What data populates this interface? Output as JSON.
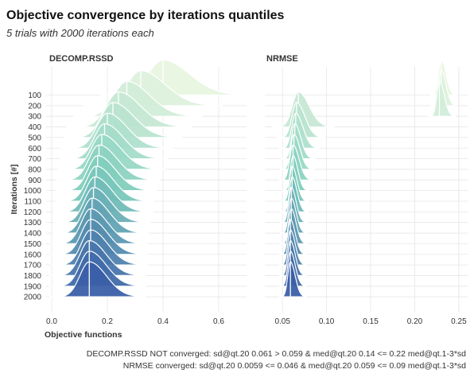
{
  "chart_data": {
    "type": "ridgeline",
    "title": "Objective convergence by iterations quantiles",
    "subtitle": "5 trials with 2000 iterations each",
    "xlabel": "Objective functions",
    "ylabel": "Iterations [#]",
    "y_categories": [
      "100",
      "200",
      "300",
      "400",
      "500",
      "600",
      "700",
      "800",
      "900",
      "1000",
      "1100",
      "1200",
      "1300",
      "1400",
      "1500",
      "1600",
      "1700",
      "1800",
      "1900",
      "2000"
    ],
    "colors": {
      "start": "#e8f5e0",
      "mid": "#7ccdbb",
      "end": "#3b5fa8"
    },
    "facets": [
      {
        "name": "DECOMP.RSSD",
        "xlim": [
          -0.02,
          0.7
        ],
        "xticks": [
          0.0,
          0.2,
          0.4,
          0.6
        ],
        "xtick_labels": [
          "0.0",
          "0.2",
          "0.4",
          "0.6"
        ],
        "medians": [
          0.4,
          0.32,
          0.27,
          0.24,
          0.22,
          0.2,
          0.19,
          0.18,
          0.17,
          0.165,
          0.16,
          0.155,
          0.15,
          0.145,
          0.14,
          0.14,
          0.14,
          0.135,
          0.135,
          0.135
        ],
        "spreads": [
          0.07,
          0.065,
          0.06,
          0.058,
          0.055,
          0.052,
          0.05,
          0.05,
          0.048,
          0.047,
          0.046,
          0.046,
          0.045,
          0.045,
          0.045,
          0.045,
          0.045,
          0.045,
          0.045,
          0.045
        ]
      },
      {
        "name": "NRMSE",
        "xlim": [
          0.03,
          0.26
        ],
        "xticks": [
          0.05,
          0.1,
          0.15,
          0.2,
          0.25
        ],
        "xtick_labels": [
          "0.05",
          "0.10",
          "0.15",
          "0.20",
          "0.25"
        ],
        "medians": [
          0.23,
          0.23,
          0.228,
          0.068,
          0.066,
          0.065,
          0.064,
          0.063,
          0.062,
          0.062,
          0.061,
          0.061,
          0.06,
          0.06,
          0.06,
          0.059,
          0.059,
          0.059,
          0.059,
          0.059
        ],
        "spreads": [
          0.004,
          0.004,
          0.004,
          0.009,
          0.007,
          0.006,
          0.005,
          0.005,
          0.005,
          0.004,
          0.004,
          0.004,
          0.004,
          0.004,
          0.004,
          0.004,
          0.004,
          0.004,
          0.004,
          0.004
        ]
      }
    ],
    "caption_lines": [
      "DECOMP.RSSD NOT converged: sd@qt.20 0.061 > 0.059 & med@qt.20 0.14 <= 0.22 med@qt.1-3*sd",
      "NRMSE converged: sd@qt.20 0.0059 <= 0.046 & med@qt.20 0.059 <= 0.09 med@qt.1-3*sd"
    ]
  }
}
